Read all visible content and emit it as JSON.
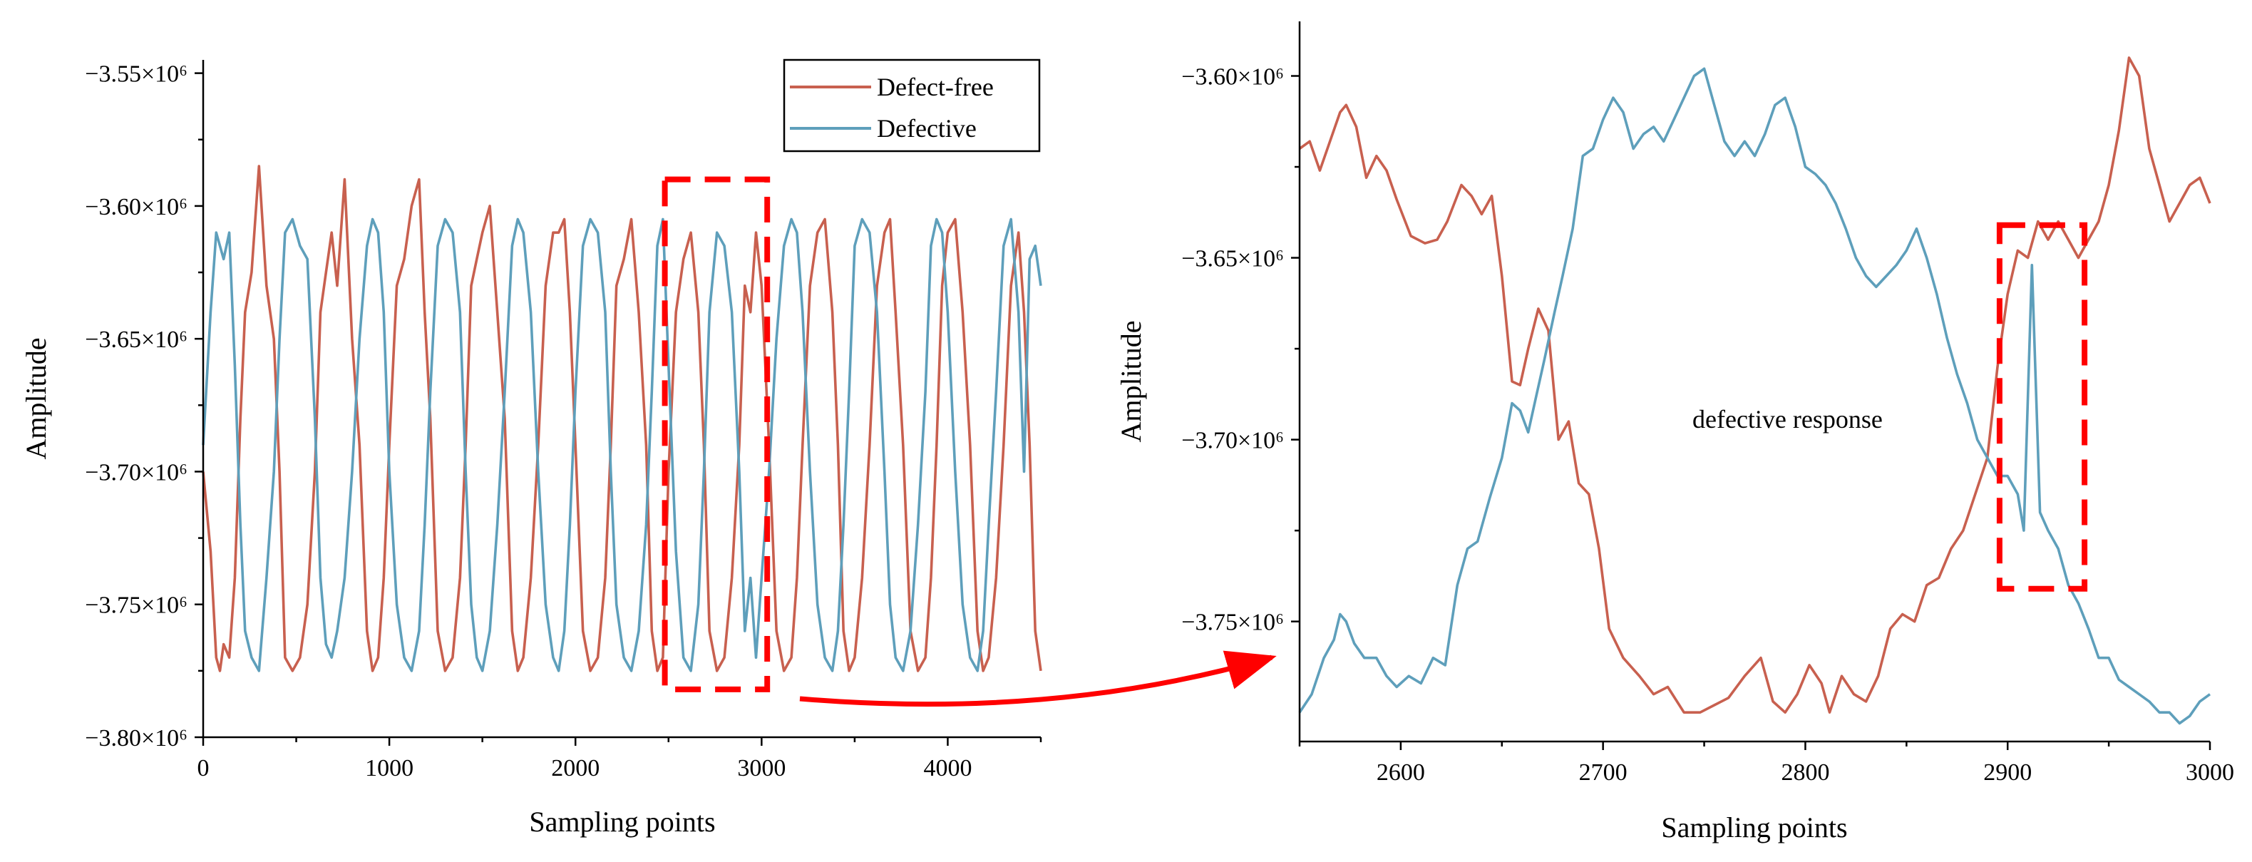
{
  "colors": {
    "defect_free": "#c8604f",
    "defective": "#5e9fbb",
    "highlight": "#ff0000"
  },
  "legend": {
    "items": [
      "Defect-free",
      "Defective"
    ]
  },
  "chart_data": [
    {
      "type": "line",
      "xlabel": "Sampling points",
      "ylabel": "Amplitude",
      "xlim": [
        0,
        4500
      ],
      "ylim": [
        -3800000,
        -3545000
      ],
      "x_ticks": [
        0,
        1000,
        2000,
        3000,
        4000
      ],
      "x_tick_labels": [
        "0",
        "1000",
        "2000",
        "3000",
        "4000"
      ],
      "y_ticks": [
        -3550000,
        -3600000,
        -3650000,
        -3700000,
        -3750000,
        -3800000
      ],
      "y_tick_labels": [
        "−3.55×10⁶",
        "−3.60×10⁶",
        "−3.65×10⁶",
        "−3.70×10⁶",
        "−3.75×10⁶",
        "−3.80×10⁶"
      ],
      "highlight_box": {
        "x_range": [
          2480,
          3030
        ],
        "y_range": [
          -3782000,
          -3590000
        ]
      },
      "series": [
        {
          "name": "Defect-free",
          "x": [
            0,
            40,
            70,
            90,
            110,
            140,
            170,
            200,
            225,
            260,
            300,
            340,
            380,
            410,
            440,
            480,
            520,
            560,
            600,
            630,
            660,
            690,
            720,
            760,
            800,
            840,
            880,
            910,
            940,
            970,
            1000,
            1040,
            1080,
            1120,
            1160,
            1190,
            1220,
            1260,
            1300,
            1340,
            1380,
            1410,
            1440,
            1470,
            1500,
            1540,
            1580,
            1620,
            1660,
            1690,
            1720,
            1760,
            1800,
            1840,
            1880,
            1910,
            1940,
            1970,
            2000,
            2040,
            2080,
            2120,
            2160,
            2190,
            2220,
            2260,
            2300,
            2340,
            2380,
            2410,
            2440,
            2470,
            2500,
            2540,
            2580,
            2620,
            2660,
            2690,
            2720,
            2760,
            2800,
            2840,
            2880,
            2910,
            2940,
            2970,
            3000,
            3040,
            3080,
            3120,
            3160,
            3190,
            3220,
            3260,
            3300,
            3340,
            3380,
            3410,
            3440,
            3470,
            3500,
            3540,
            3580,
            3620,
            3660,
            3690,
            3720,
            3760,
            3800,
            3840,
            3880,
            3910,
            3940,
            3970,
            4000,
            4040,
            4080,
            4120,
            4160,
            4190,
            4220,
            4260,
            4300,
            4340,
            4380,
            4410,
            4440,
            4470,
            4500
          ],
          "y": [
            -3700000,
            -3730000,
            -3770000,
            -3775000,
            -3765000,
            -3770000,
            -3740000,
            -3680000,
            -3640000,
            -3625000,
            -3585000,
            -3630000,
            -3650000,
            -3700000,
            -3770000,
            -3775000,
            -3770000,
            -3750000,
            -3700000,
            -3640000,
            -3625000,
            -3610000,
            -3630000,
            -3590000,
            -3650000,
            -3690000,
            -3760000,
            -3775000,
            -3770000,
            -3740000,
            -3690000,
            -3630000,
            -3620000,
            -3600000,
            -3590000,
            -3640000,
            -3680000,
            -3760000,
            -3775000,
            -3770000,
            -3740000,
            -3690000,
            -3630000,
            -3620000,
            -3610000,
            -3600000,
            -3640000,
            -3680000,
            -3760000,
            -3775000,
            -3770000,
            -3740000,
            -3690000,
            -3630000,
            -3610000,
            -3610000,
            -3605000,
            -3640000,
            -3690000,
            -3760000,
            -3775000,
            -3770000,
            -3740000,
            -3690000,
            -3630000,
            -3620000,
            -3605000,
            -3640000,
            -3690000,
            -3760000,
            -3775000,
            -3770000,
            -3700000,
            -3640000,
            -3620000,
            -3610000,
            -3640000,
            -3690000,
            -3760000,
            -3775000,
            -3770000,
            -3740000,
            -3690000,
            -3630000,
            -3640000,
            -3610000,
            -3630000,
            -3690000,
            -3760000,
            -3775000,
            -3770000,
            -3740000,
            -3690000,
            -3630000,
            -3610000,
            -3605000,
            -3640000,
            -3690000,
            -3760000,
            -3775000,
            -3770000,
            -3740000,
            -3690000,
            -3630000,
            -3610000,
            -3605000,
            -3640000,
            -3690000,
            -3760000,
            -3775000,
            -3770000,
            -3740000,
            -3690000,
            -3630000,
            -3610000,
            -3605000,
            -3640000,
            -3690000,
            -3760000,
            -3775000,
            -3770000,
            -3740000,
            -3690000,
            -3630000,
            -3610000,
            -3640000,
            -3690000,
            -3760000,
            -3775000
          ]
        },
        {
          "name": "Defective",
          "x": [
            0,
            40,
            70,
            90,
            110,
            140,
            170,
            200,
            225,
            260,
            300,
            340,
            380,
            410,
            440,
            480,
            520,
            560,
            600,
            630,
            660,
            690,
            720,
            760,
            800,
            840,
            880,
            910,
            940,
            970,
            1000,
            1040,
            1080,
            1120,
            1160,
            1190,
            1220,
            1260,
            1300,
            1340,
            1380,
            1410,
            1440,
            1470,
            1500,
            1540,
            1580,
            1620,
            1660,
            1690,
            1720,
            1760,
            1800,
            1840,
            1880,
            1910,
            1940,
            1970,
            2000,
            2040,
            2080,
            2120,
            2160,
            2190,
            2220,
            2260,
            2300,
            2340,
            2380,
            2410,
            2440,
            2470,
            2500,
            2540,
            2580,
            2620,
            2660,
            2690,
            2720,
            2760,
            2800,
            2840,
            2880,
            2910,
            2940,
            2970,
            3000,
            3040,
            3080,
            3120,
            3160,
            3190,
            3220,
            3260,
            3300,
            3340,
            3380,
            3410,
            3440,
            3470,
            3500,
            3540,
            3580,
            3620,
            3660,
            3690,
            3720,
            3760,
            3800,
            3840,
            3880,
            3910,
            3940,
            3970,
            4000,
            4040,
            4080,
            4120,
            4160,
            4190,
            4220,
            4260,
            4300,
            4340,
            4380,
            4410,
            4440,
            4470,
            4500
          ],
          "y": [
            -3690000,
            -3640000,
            -3610000,
            -3615000,
            -3620000,
            -3610000,
            -3660000,
            -3720000,
            -3760000,
            -3770000,
            -3775000,
            -3740000,
            -3700000,
            -3650000,
            -3610000,
            -3605000,
            -3615000,
            -3620000,
            -3680000,
            -3740000,
            -3765000,
            -3770000,
            -3760000,
            -3740000,
            -3700000,
            -3650000,
            -3615000,
            -3605000,
            -3610000,
            -3640000,
            -3700000,
            -3750000,
            -3770000,
            -3775000,
            -3760000,
            -3720000,
            -3670000,
            -3615000,
            -3605000,
            -3610000,
            -3640000,
            -3700000,
            -3750000,
            -3770000,
            -3775000,
            -3760000,
            -3720000,
            -3670000,
            -3615000,
            -3605000,
            -3610000,
            -3640000,
            -3700000,
            -3750000,
            -3770000,
            -3775000,
            -3760000,
            -3720000,
            -3670000,
            -3615000,
            -3605000,
            -3610000,
            -3640000,
            -3700000,
            -3750000,
            -3770000,
            -3775000,
            -3760000,
            -3720000,
            -3670000,
            -3615000,
            -3605000,
            -3660000,
            -3730000,
            -3770000,
            -3775000,
            -3750000,
            -3700000,
            -3640000,
            -3610000,
            -3615000,
            -3640000,
            -3700000,
            -3760000,
            -3740000,
            -3770000,
            -3740000,
            -3700000,
            -3650000,
            -3615000,
            -3605000,
            -3610000,
            -3640000,
            -3700000,
            -3750000,
            -3770000,
            -3775000,
            -3760000,
            -3720000,
            -3670000,
            -3615000,
            -3605000,
            -3610000,
            -3640000,
            -3700000,
            -3750000,
            -3770000,
            -3775000,
            -3760000,
            -3720000,
            -3670000,
            -3615000,
            -3605000,
            -3610000,
            -3640000,
            -3700000,
            -3750000,
            -3770000,
            -3775000,
            -3760000,
            -3720000,
            -3670000,
            -3615000,
            -3605000,
            -3640000,
            -3700000,
            -3620000,
            -3615000,
            -3630000
          ]
        }
      ]
    },
    {
      "type": "line",
      "xlabel": "Sampling points",
      "ylabel": "Amplitude",
      "xlim": [
        2550,
        3000
      ],
      "ylim": [
        -3783000,
        -3585000
      ],
      "x_ticks": [
        2600,
        2700,
        2800,
        2900,
        3000
      ],
      "x_tick_labels": [
        "2600",
        "2700",
        "2800",
        "2900",
        "3000"
      ],
      "y_ticks": [
        -3600000,
        -3650000,
        -3700000,
        -3750000
      ],
      "y_tick_labels": [
        "−3.60×10⁶",
        "−3.65×10⁶",
        "−3.70×10⁶",
        "−3.75×10⁶"
      ],
      "annotation": "defective response",
      "highlight_box": {
        "x_range": [
          2896,
          2938
        ],
        "y_range": [
          -3741000,
          -3641000
        ]
      },
      "series": [
        {
          "name": "Defect-free",
          "x": [
            2550,
            2555,
            2560,
            2565,
            2570,
            2573,
            2578,
            2583,
            2588,
            2593,
            2598,
            2605,
            2612,
            2618,
            2623,
            2630,
            2635,
            2640,
            2645,
            2650,
            2655,
            2659,
            2663,
            2668,
            2673,
            2678,
            2683,
            2688,
            2693,
            2698,
            2703,
            2710,
            2718,
            2725,
            2732,
            2740,
            2748,
            2755,
            2762,
            2770,
            2778,
            2784,
            2790,
            2796,
            2802,
            2808,
            2812,
            2818,
            2824,
            2830,
            2836,
            2842,
            2848,
            2854,
            2860,
            2866,
            2872,
            2878,
            2884,
            2890,
            2895,
            2900,
            2905,
            2910,
            2915,
            2920,
            2925,
            2930,
            2935,
            2940,
            2945,
            2950,
            2955,
            2960,
            2965,
            2970,
            2975,
            2980,
            2985,
            2990,
            2995,
            3000
          ],
          "y": [
            -3620000,
            -3618000,
            -3626000,
            -3618000,
            -3610000,
            -3608000,
            -3614000,
            -3628000,
            -3622000,
            -3626000,
            -3634000,
            -3644000,
            -3646000,
            -3645000,
            -3640000,
            -3630000,
            -3633000,
            -3638000,
            -3633000,
            -3655000,
            -3684000,
            -3685000,
            -3675000,
            -3664000,
            -3670000,
            -3700000,
            -3695000,
            -3712000,
            -3715000,
            -3730000,
            -3752000,
            -3760000,
            -3765000,
            -3770000,
            -3768000,
            -3775000,
            -3775000,
            -3773000,
            -3771000,
            -3765000,
            -3760000,
            -3772000,
            -3775000,
            -3770000,
            -3762000,
            -3767000,
            -3775000,
            -3765000,
            -3770000,
            -3772000,
            -3765000,
            -3752000,
            -3748000,
            -3750000,
            -3740000,
            -3738000,
            -3730000,
            -3725000,
            -3715000,
            -3705000,
            -3680000,
            -3660000,
            -3648000,
            -3650000,
            -3640000,
            -3645000,
            -3640000,
            -3645000,
            -3650000,
            -3645000,
            -3640000,
            -3630000,
            -3615000,
            -3595000,
            -3600000,
            -3620000,
            -3630000,
            -3640000,
            -3635000,
            -3630000,
            -3628000,
            -3635000
          ]
        },
        {
          "name": "Defective",
          "x": [
            2550,
            2556,
            2562,
            2567,
            2570,
            2573,
            2577,
            2582,
            2588,
            2593,
            2598,
            2604,
            2610,
            2616,
            2622,
            2628,
            2633,
            2638,
            2644,
            2650,
            2655,
            2659,
            2663,
            2667,
            2671,
            2676,
            2680,
            2685,
            2690,
            2695,
            2700,
            2705,
            2710,
            2715,
            2720,
            2725,
            2730,
            2735,
            2740,
            2745,
            2750,
            2755,
            2760,
            2765,
            2770,
            2775,
            2780,
            2785,
            2790,
            2795,
            2800,
            2805,
            2810,
            2815,
            2820,
            2825,
            2830,
            2835,
            2840,
            2845,
            2850,
            2855,
            2860,
            2865,
            2870,
            2875,
            2880,
            2885,
            2890,
            2895,
            2900,
            2905,
            2908,
            2912,
            2916,
            2920,
            2925,
            2930,
            2935,
            2940,
            2945,
            2950,
            2955,
            2960,
            2965,
            2970,
            2975,
            2980,
            2985,
            2990,
            2995,
            3000
          ],
          "y": [
            -3775000,
            -3770000,
            -3760000,
            -3755000,
            -3748000,
            -3750000,
            -3756000,
            -3760000,
            -3760000,
            -3765000,
            -3768000,
            -3765000,
            -3767000,
            -3760000,
            -3762000,
            -3740000,
            -3730000,
            -3728000,
            -3716000,
            -3705000,
            -3690000,
            -3692000,
            -3698000,
            -3688000,
            -3678000,
            -3665000,
            -3655000,
            -3642000,
            -3622000,
            -3620000,
            -3612000,
            -3606000,
            -3610000,
            -3620000,
            -3616000,
            -3614000,
            -3618000,
            -3612000,
            -3606000,
            -3600000,
            -3598000,
            -3608000,
            -3618000,
            -3622000,
            -3618000,
            -3622000,
            -3616000,
            -3608000,
            -3606000,
            -3614000,
            -3625000,
            -3627000,
            -3630000,
            -3635000,
            -3642000,
            -3650000,
            -3655000,
            -3658000,
            -3655000,
            -3652000,
            -3648000,
            -3642000,
            -3650000,
            -3660000,
            -3672000,
            -3682000,
            -3690000,
            -3700000,
            -3705000,
            -3710000,
            -3710000,
            -3715000,
            -3725000,
            -3652000,
            -3720000,
            -3725000,
            -3730000,
            -3740000,
            -3745000,
            -3752000,
            -3760000,
            -3760000,
            -3766000,
            -3768000,
            -3770000,
            -3772000,
            -3775000,
            -3775000,
            -3778000,
            -3776000,
            -3772000,
            -3770000
          ]
        }
      ]
    }
  ]
}
